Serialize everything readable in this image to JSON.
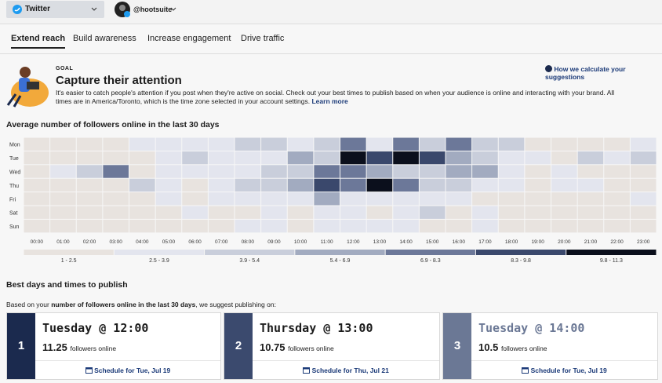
{
  "topbar": {
    "network": "Twitter",
    "account": "@hootsuite"
  },
  "tabs": [
    "Extend reach",
    "Build awareness",
    "Increase engagement",
    "Drive traffic"
  ],
  "active_tab": 0,
  "goal": {
    "eyebrow": "GOAL",
    "title": "Capture their attention",
    "text": "It's easier to catch people's attention if you post when they're active on social. Check out your best times to publish based on when your audience is online and interacting with your brand. All times are in America/Toronto, which is the time zone selected in your account settings.",
    "link": "Learn more",
    "help": "How we calculate your suggestions"
  },
  "heatmap": {
    "title": "Average number of followers online in the last 30 days",
    "days": [
      "Mon",
      "Tue",
      "Wed",
      "Thu",
      "Fri",
      "Sat",
      "Sun"
    ],
    "hours": [
      "00:00",
      "01:00",
      "02:00",
      "03:00",
      "04:00",
      "05:00",
      "06:00",
      "07:00",
      "08:00",
      "09:00",
      "10:00",
      "11:00",
      "12:00",
      "13:00",
      "14:00",
      "15:00",
      "16:00",
      "17:00",
      "18:00",
      "19:00",
      "20:00",
      "21:00",
      "22:00",
      "23:00"
    ],
    "values": [
      [
        1.8,
        1.8,
        1.8,
        1.8,
        3.2,
        3.2,
        3.2,
        3.2,
        4.6,
        4.6,
        3.2,
        4.6,
        7.6,
        3.2,
        7.6,
        4.6,
        7.6,
        4.6,
        4.6,
        1.8,
        1.8,
        1.8,
        1.8,
        3.2
      ],
      [
        1.8,
        1.8,
        1.8,
        1.8,
        1.8,
        3.2,
        4.6,
        3.2,
        3.2,
        3.2,
        6.1,
        4.6,
        11.25,
        9,
        10.5,
        9,
        6.1,
        4.6,
        3.2,
        3.2,
        1.8,
        4.6,
        3.2,
        4.6
      ],
      [
        1.8,
        3.2,
        4.6,
        7.6,
        1.8,
        3.2,
        3.2,
        3.2,
        3.2,
        4.6,
        4.6,
        7.6,
        7.6,
        6.1,
        4.6,
        4.6,
        6.1,
        6.1,
        3.2,
        1.8,
        3.2,
        1.8,
        1.8,
        1.8
      ],
      [
        1.8,
        1.8,
        1.8,
        1.8,
        4.6,
        3.2,
        1.8,
        3.2,
        4.6,
        4.6,
        6.1,
        9,
        7.6,
        10.75,
        7.6,
        4.6,
        4.6,
        3.2,
        3.2,
        1.8,
        3.2,
        3.2,
        1.8,
        1.8
      ],
      [
        1.8,
        1.8,
        1.8,
        1.8,
        1.8,
        3.2,
        1.8,
        3.2,
        3.2,
        3.2,
        3.2,
        6.1,
        3.2,
        3.2,
        3.2,
        3.2,
        3.2,
        1.8,
        1.8,
        1.8,
        1.8,
        1.8,
        1.8,
        3.2
      ],
      [
        1.8,
        1.8,
        1.8,
        1.8,
        1.8,
        1.8,
        3.2,
        1.8,
        1.8,
        3.2,
        1.8,
        3.2,
        3.2,
        1.8,
        3.2,
        4.6,
        1.8,
        3.2,
        1.8,
        1.8,
        1.8,
        1.8,
        1.8,
        1.8
      ],
      [
        1.8,
        1.8,
        1.8,
        1.8,
        1.8,
        1.8,
        1.8,
        1.8,
        3.2,
        3.2,
        1.8,
        3.2,
        3.2,
        3.2,
        3.2,
        1.8,
        1.8,
        3.2,
        1.8,
        1.8,
        1.8,
        1.8,
        1.8,
        1.8
      ]
    ],
    "legend": [
      {
        "label": "1 - 2.5",
        "min": 1,
        "max": 2.5,
        "color": "#e8e3df"
      },
      {
        "label": "2.5 - 3.9",
        "min": 2.5,
        "max": 3.9,
        "color": "#e3e5ee"
      },
      {
        "label": "3.9 - 5.4",
        "min": 3.9,
        "max": 5.4,
        "color": "#c9cedb"
      },
      {
        "label": "5.4 - 6.9",
        "min": 5.4,
        "max": 6.9,
        "color": "#a2abc0"
      },
      {
        "label": "6.9 - 8.3",
        "min": 6.9,
        "max": 8.3,
        "color": "#6c7899"
      },
      {
        "label": "8.3 - 9.8",
        "min": 8.3,
        "max": 9.8,
        "color": "#3a486c"
      },
      {
        "label": "9.8 - 11.3",
        "min": 9.8,
        "max": 11.3,
        "color": "#0b0f1c"
      }
    ]
  },
  "best": {
    "title": "Best days and times to publish",
    "intro": [
      "Based on your ",
      "number of followers online in the last 30 days",
      ", we suggest publishing on:"
    ],
    "cards": [
      {
        "rank": "1",
        "title": "Tuesday @ 12:00",
        "value": "11.25",
        "unit": "followers online",
        "action": "Schedule for Tue, Jul 19",
        "color": "#1b2a4e"
      },
      {
        "rank": "2",
        "title": "Thursday @ 13:00",
        "value": "10.75",
        "unit": "followers online",
        "action": "Schedule for Thu, Jul 21",
        "color": "#3b4a6e"
      },
      {
        "rank": "3",
        "title": "Tuesday @ 14:00",
        "value": "10.5",
        "unit": "followers online",
        "action": "Schedule for Tue, Jul 19",
        "color": "#6b7895"
      }
    ]
  }
}
